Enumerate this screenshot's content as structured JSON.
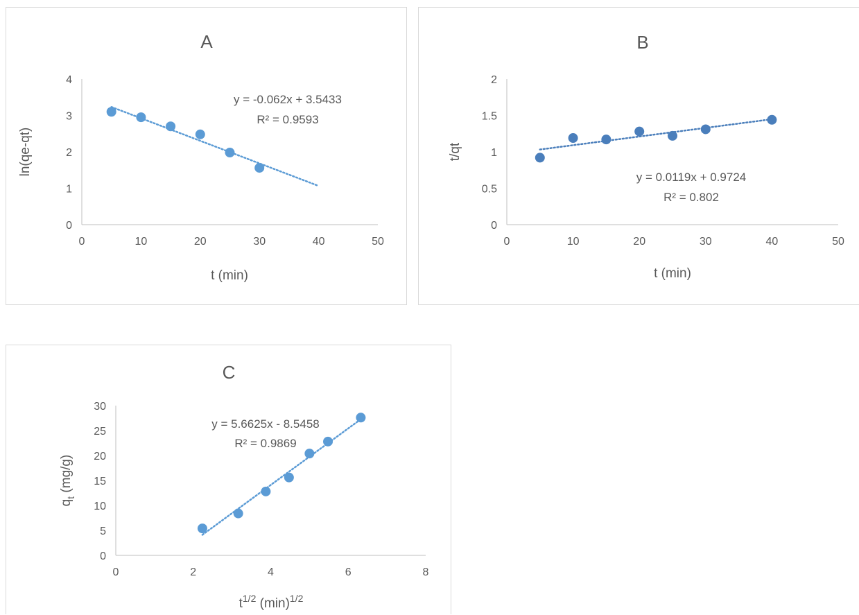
{
  "chart_data": [
    {
      "id": "A",
      "type": "scatter",
      "title": "A",
      "xlabel": "t (min)",
      "ylabel": "ln(qe-qt)",
      "xlim": [
        0,
        50
      ],
      "ylim": [
        0,
        4
      ],
      "xticks": [
        "0",
        "10",
        "20",
        "30",
        "40",
        "50"
      ],
      "yticks": [
        "0",
        "1",
        "2",
        "3",
        "4"
      ],
      "grid": false,
      "point_color": "#5b9bd5",
      "trend_color": "#5b9bd5",
      "x": [
        5,
        10,
        15,
        20,
        25,
        30
      ],
      "y": [
        3.1,
        2.95,
        2.7,
        2.48,
        1.98,
        1.56
      ],
      "trendline": {
        "slope": -0.062,
        "intercept": 3.5433,
        "x_range": [
          5,
          40
        ]
      },
      "equation": "y = -0.062x + 3.5433",
      "r2": "R² = 0.9593"
    },
    {
      "id": "B",
      "type": "scatter",
      "title": "B",
      "xlabel": "t (min)",
      "ylabel": "t/qt",
      "xlim": [
        0,
        50
      ],
      "ylim": [
        0,
        2
      ],
      "xticks": [
        "0",
        "10",
        "20",
        "30",
        "40",
        "50"
      ],
      "yticks": [
        "0",
        "0.5",
        "1",
        "1.5",
        "2"
      ],
      "grid": false,
      "point_color": "#4a7ebb",
      "trend_color": "#4a7ebb",
      "x": [
        5,
        10,
        15,
        20,
        25,
        30,
        40
      ],
      "y": [
        0.92,
        1.19,
        1.17,
        1.28,
        1.22,
        1.31,
        1.44
      ],
      "trendline": {
        "slope": 0.0119,
        "intercept": 0.9724,
        "x_range": [
          5,
          40
        ]
      },
      "equation": "y = 0.0119x + 0.9724",
      "r2": "R² = 0.802"
    },
    {
      "id": "C",
      "type": "scatter",
      "title": "C",
      "xlabel_base": "t",
      "xlabel_sup1": "1/2",
      "xlabel_mid": " (min)",
      "xlabel_sup2": "1/2",
      "ylabel_base": "q",
      "ylabel_sub": "t",
      "ylabel_rest": " (mg/g)",
      "xlim": [
        0,
        8
      ],
      "ylim": [
        0,
        30
      ],
      "xticks": [
        "0",
        "2",
        "4",
        "6",
        "8"
      ],
      "yticks": [
        "0",
        "5",
        "10",
        "15",
        "20",
        "25",
        "30"
      ],
      "grid": false,
      "point_color": "#5b9bd5",
      "trend_color": "#5b9bd5",
      "x": [
        2.236,
        3.162,
        3.873,
        4.472,
        5.0,
        5.477,
        6.325
      ],
      "y": [
        5.4,
        8.4,
        12.8,
        15.6,
        20.4,
        22.8,
        27.6
      ],
      "trendline": {
        "slope": 5.6625,
        "intercept": -8.5458,
        "x_range": [
          2.236,
          6.325
        ]
      },
      "equation": "y = 5.6625x - 8.5458",
      "r2": "R² = 0.9869"
    }
  ]
}
